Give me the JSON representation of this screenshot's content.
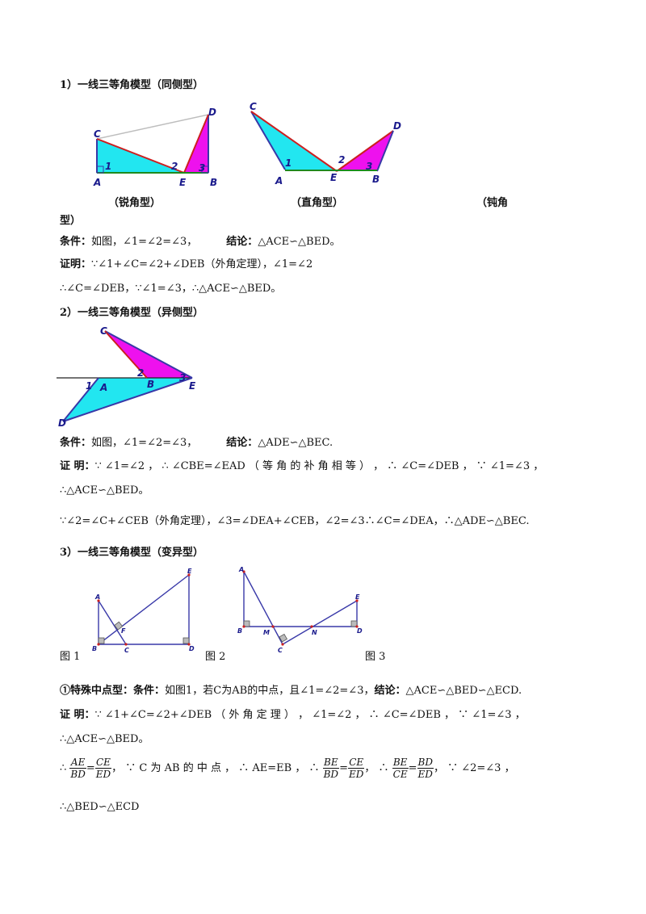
{
  "s1": {
    "title": "1）一线三等角模型（同侧型）",
    "cap_acute": "（锐角型）",
    "cap_right": "（直角型）",
    "cap_obtuse_a": "（钝角",
    "cap_obtuse_b": "型）",
    "cond_label": "条件：",
    "cond_text": "如图，∠1=∠2=∠3，",
    "concl_label": "结论：",
    "concl_text": "△ACE∽△BED。",
    "proof_label": "证明：",
    "proof_1": "∵∠1+∠C=∠2+∠DEB（外角定理），∠1=∠2",
    "proof_2": "∴∠C=∠DEB，∵∠1=∠3，∴△ACE∽△BED。"
  },
  "s2": {
    "title": "2）一线三等角模型（异侧型）",
    "cond_label": "条件：",
    "cond_text": "如图，∠1=∠2=∠3，",
    "concl_label": "结论：",
    "concl_text": "△ADE∽△BEC.",
    "proof_label": "证 明：",
    "proof_1": "∵ ∠1=∠2 ， ∴ ∠CBE=∠EAD （ 等 角 的 补 角 相 等 ） ， ∴ ∠C=∠DEB ， ∵ ∠1=∠3 ，",
    "proof_2": "∴△ACE∽△BED。",
    "proof_3": "∵∠2=∠C+∠CEB（外角定理），∠3=∠DEA+∠CEB，∠2=∠3∴∠C=∠DEA，∴△ADE∽△BEC."
  },
  "s3": {
    "title": "3）一线三等角模型（变异型）",
    "fig1": "图 1",
    "fig2": "图 2",
    "fig3": "图 3",
    "special_label": "①特殊中点型：",
    "cond_label": "条件：",
    "cond_text": "如图1，若C为AB的中点，且∠1=∠2=∠3，",
    "concl_label": "结论：",
    "concl_text": "△ACE∽△BED∽△ECD.",
    "proof_label": "证 明：",
    "proof_1": "∵ ∠1+∠C=∠2+∠DEB （ 外 角 定 理 ） ， ∠1=∠2 ， ∴ ∠C=∠DEB ， ∵ ∠1=∠3 ，",
    "proof_2": "∴△ACE∽△BED。",
    "proof_3a": "∴",
    "frac1_num": "AE",
    "frac1_den": "BD",
    "frac1_eq": "=",
    "frac1b_num": "CE",
    "frac1b_den": "ED",
    "proof_3b": "， ∵ C 为 AB 的 中 点 ， ∴ AE=EB ， ∴",
    "frac2_num": "BE",
    "frac2_den": "BD",
    "frac2b_num": "CE",
    "frac2b_den": "ED",
    "proof_3c": "，  ∴",
    "frac3_num": "BE",
    "frac3_den": "CE",
    "frac3b_num": "BD",
    "frac3b_den": "ED",
    "proof_3d": "， ∵ ∠2=∠3 ，",
    "proof_4": "∴△BED∽△ECD"
  },
  "labels": {
    "A": "A",
    "B": "B",
    "C": "C",
    "D": "D",
    "E": "E",
    "F": "F",
    "M": "M",
    "N": "N",
    "one": "1",
    "two": "2",
    "three": "3"
  },
  "colors": {
    "cyan": "#22e6f0",
    "magenta": "#ee11ee",
    "blue": "#3838a8",
    "red": "#cc1f1f",
    "green": "#1e8a1e",
    "gray": "#bdbdbd"
  }
}
